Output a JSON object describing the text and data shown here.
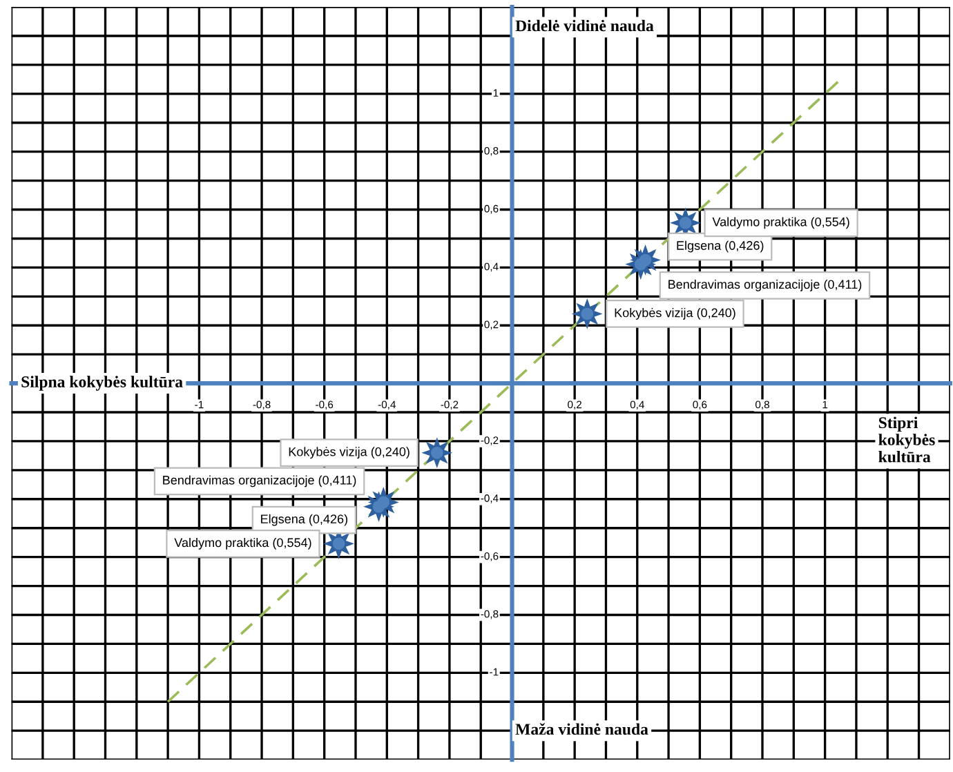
{
  "chart_data": {
    "type": "scatter",
    "annotations": [
      "Didelė vidinė nauda",
      "Maža vidinė nauda",
      "Silpna kokybės kultūra",
      "Stipri kokybės kultūra"
    ],
    "series": [
      {
        "type": "line",
        "color": "#9bbb59",
        "line_style": "dashed",
        "marker": "none",
        "x": [
          -1.1,
          1.05
        ],
        "values": [
          -1.1,
          1.05
        ]
      },
      {
        "type": "scatter",
        "color": "#2e5f9e",
        "marker": "star",
        "x": [
          0.24,
          0.411,
          0.426,
          0.554
        ],
        "values": [
          0.24,
          0.411,
          0.426,
          0.554
        ],
        "value_labels": [
          "Kokybės vizija (0,240)",
          "Bendravimas organizacijoje (0,411)",
          "Elgsena (0,426)",
          "Valdymo praktika (0,554)"
        ]
      },
      {
        "type": "scatter",
        "color": "#2e5f9e",
        "marker": "star",
        "x": [
          -0.24,
          -0.411,
          -0.426,
          -0.554
        ],
        "values": [
          -0.24,
          -0.411,
          -0.426,
          -0.554
        ],
        "value_labels": [
          "Kokybės vizija (0,240)",
          "Bendravimas organizacijoje (0,411)",
          "Elgsena (0,426)",
          "Valdymo praktika (0,554)"
        ]
      }
    ],
    "xlim": [
      -1.6,
      1.4
    ],
    "ylim": [
      -1.3,
      1.3
    ],
    "xticks": [
      {
        "value": -1.6,
        "label": null
      },
      {
        "value": -1.5,
        "label": null
      },
      {
        "value": -1.4,
        "label": null
      },
      {
        "value": -1.3,
        "label": null
      },
      {
        "value": -1.2,
        "label": null
      },
      {
        "value": -1.1,
        "label": null
      },
      -1,
      {
        "value": -0.9,
        "label": null
      },
      {
        "value": -0.8,
        "label": "-0,8"
      },
      {
        "value": -0.7,
        "label": null
      },
      {
        "value": -0.6,
        "label": "-0,6"
      },
      {
        "value": -0.5,
        "label": null
      },
      {
        "value": -0.4,
        "label": "-0,4"
      },
      {
        "value": -0.3,
        "label": null
      },
      {
        "value": -0.2,
        "label": "-0,2"
      },
      {
        "value": -0.1,
        "label": null
      },
      {
        "value": 0,
        "label": null
      },
      {
        "value": 0.1,
        "label": null
      },
      {
        "value": 0.2,
        "label": "0,2"
      },
      {
        "value": 0.3,
        "label": null
      },
      {
        "value": 0.4,
        "label": "0,4"
      },
      {
        "value": 0.5,
        "label": null
      },
      {
        "value": 0.6,
        "label": "0,6"
      },
      {
        "value": 0.7,
        "label": null
      },
      {
        "value": 0.8,
        "label": "0,8"
      },
      {
        "value": 0.9,
        "label": null
      },
      1,
      {
        "value": 1.1,
        "label": null
      },
      {
        "value": 1.2,
        "label": null
      },
      {
        "value": 1.3,
        "label": null
      },
      {
        "value": 1.4,
        "label": null
      }
    ],
    "yticks": [
      {
        "value": -1.3,
        "label": null
      },
      {
        "value": -1.2,
        "label": null
      },
      {
        "value": -1.1,
        "label": null
      },
      -1,
      {
        "value": -0.9,
        "label": null
      },
      {
        "value": -0.8,
        "label": "-0,8"
      },
      {
        "value": -0.7,
        "label": null
      },
      {
        "value": -0.6,
        "label": "-0,6"
      },
      {
        "value": -0.5,
        "label": null
      },
      {
        "value": -0.4,
        "label": "-0,4"
      },
      {
        "value": -0.3,
        "label": null
      },
      {
        "value": -0.2,
        "label": "-0,2"
      },
      {
        "value": -0.1,
        "label": null
      },
      {
        "value": 0,
        "label": null
      },
      {
        "value": 0.1,
        "label": null
      },
      {
        "value": 0.2,
        "label": "0,2"
      },
      {
        "value": 0.3,
        "label": null
      },
      {
        "value": 0.4,
        "label": "0,4"
      },
      {
        "value": 0.5,
        "label": null
      },
      {
        "value": 0.6,
        "label": "0,6"
      },
      {
        "value": 0.7,
        "label": null
      },
      {
        "value": 0.8,
        "label": "0,8"
      },
      {
        "value": 0.9,
        "label": null
      },
      1,
      {
        "value": 1.1,
        "label": null
      },
      {
        "value": 1.2,
        "label": null
      },
      {
        "value": 1.3,
        "label": null
      }
    ],
    "grid": true,
    "legend": false
  }
}
